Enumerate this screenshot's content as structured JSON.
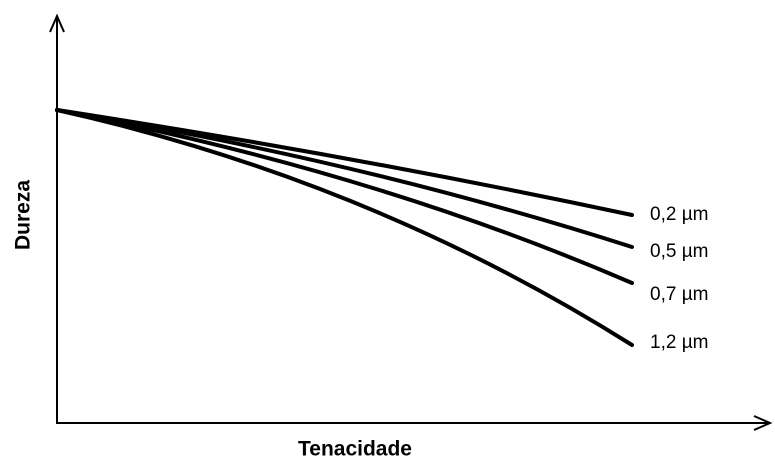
{
  "diagram": {
    "y_axis_label": "Dureza",
    "x_axis_label": "Tenacidade",
    "curves": [
      {
        "label": "0,2 µm"
      },
      {
        "label": "0,5 µm"
      },
      {
        "label": "0,7 µm"
      },
      {
        "label": "1,2 µm"
      }
    ]
  }
}
